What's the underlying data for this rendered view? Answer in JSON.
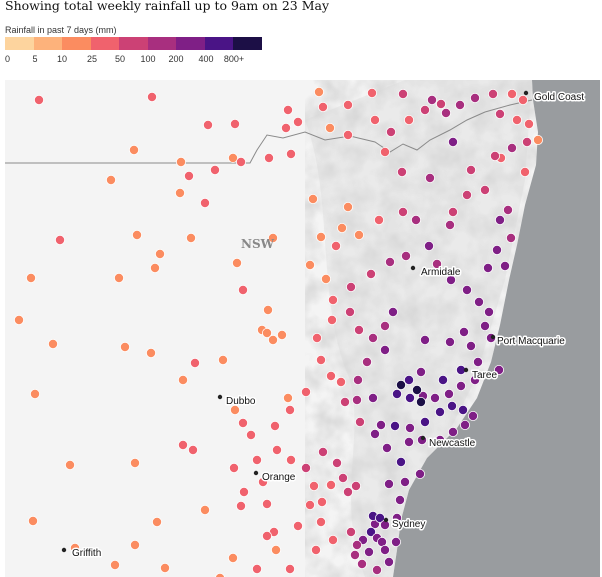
{
  "title": "Showing total weekly rainfall up to 9am on 23 May",
  "legend": {
    "label": "Rainfall in past 7 days (mm)",
    "ticks": [
      "0",
      "5",
      "10",
      "25",
      "50",
      "100",
      "200",
      "400",
      "800+"
    ],
    "colors": [
      "#fdd49e",
      "#fdb27b",
      "#fb8c60",
      "#f0626d",
      "#cc4175",
      "#a82f7f",
      "#7f1f86",
      "#4a1486",
      "#1c0f46"
    ]
  },
  "map": {
    "region_label": "NSW",
    "places": [
      "Gold Coast",
      "Armidale",
      "Port Macquarie",
      "Taree",
      "Dubbo",
      "Newcastle",
      "Orange",
      "Sydney",
      "Griffith"
    ],
    "colors": {
      "land": "#f4f4f4",
      "sea": "#999c9f",
      "border": "#8a8a8a",
      "station_outline": "#ffffff"
    }
  }
}
